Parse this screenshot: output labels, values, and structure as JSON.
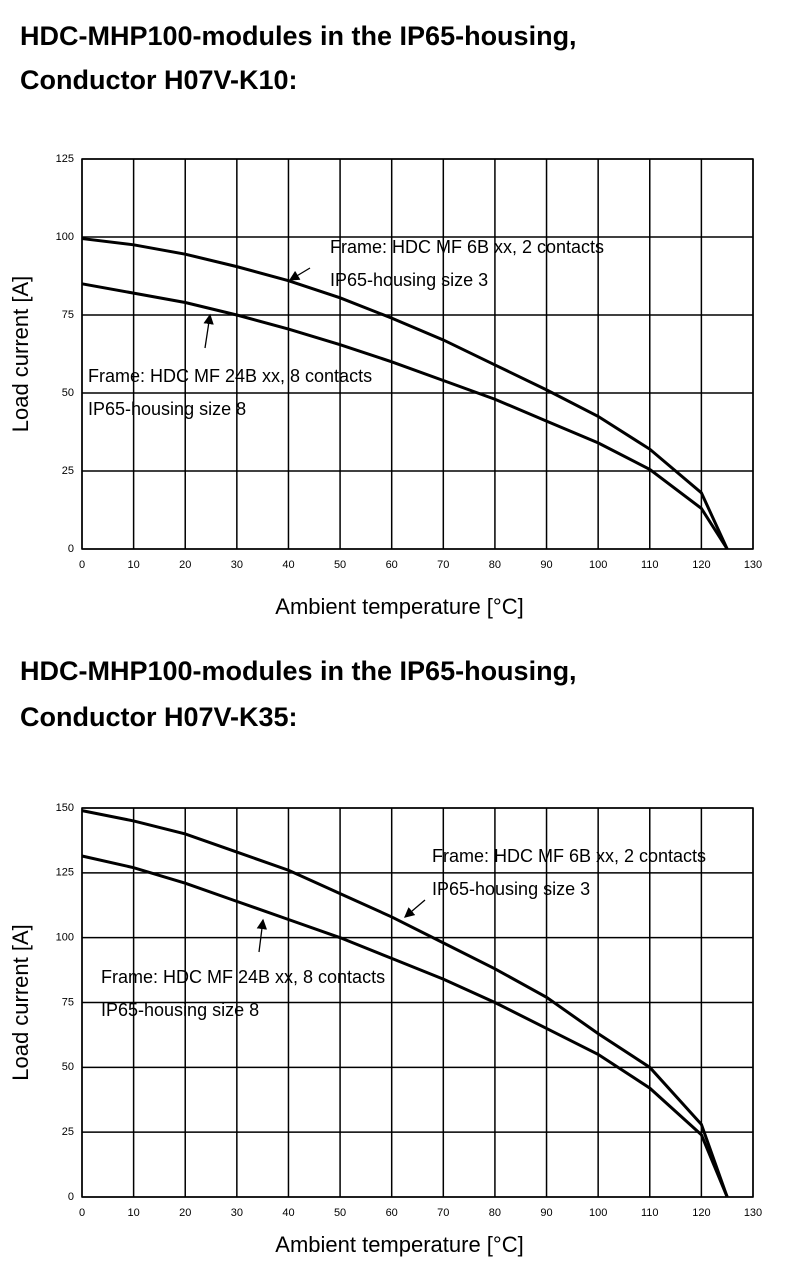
{
  "chart_data": [
    {
      "type": "line",
      "title": [
        "HDC-MHP100-modules in the IP65-housing,",
        "Conductor H07V-K10:"
      ],
      "x_label": "Ambient temperature [°C]",
      "y_label": "Load current [A]",
      "x": [
        0,
        10,
        20,
        30,
        40,
        50,
        60,
        70,
        80,
        90,
        100,
        110,
        120,
        125
      ],
      "series": [
        {
          "color": "#000000",
          "values": [
            99.5,
            97.5,
            94.5,
            90.5,
            86,
            80.5,
            74,
            67,
            59,
            51,
            42.5,
            32,
            18,
            0
          ]
        },
        {
          "color": "#000000",
          "values": [
            85,
            82,
            79,
            75,
            70.5,
            65.5,
            60,
            54,
            48,
            41,
            34,
            25.5,
            13,
            0
          ]
        }
      ],
      "annotations": [
        [
          "Frame: HDC MF 6B xx, 2 contacts",
          "IP65-housing size 3"
        ],
        [
          "Frame: HDC MF 24B xx, 8 contacts",
          "IP65-housing size 8"
        ]
      ],
      "xlim": [
        0,
        130
      ],
      "ylim": [
        0,
        125
      ],
      "xticks": [
        0,
        10,
        20,
        30,
        40,
        50,
        60,
        70,
        80,
        90,
        100,
        110,
        120,
        130
      ],
      "yticks": [
        0,
        25,
        50,
        75,
        100,
        125
      ],
      "grid": true
    },
    {
      "type": "line",
      "title": [
        "HDC-MHP100-modules in the IP65-housing,",
        "Conductor H07V-K35:"
      ],
      "x_label": "Ambient temperature [°C]",
      "y_label": "Load current [A]",
      "x": [
        0,
        10,
        20,
        30,
        40,
        50,
        60,
        70,
        80,
        90,
        100,
        110,
        120,
        125
      ],
      "series": [
        {
          "color": "#000000",
          "values": [
            149,
            145,
            140,
            133,
            126,
            117,
            108,
            98,
            88,
            77,
            63,
            50,
            28,
            0
          ]
        },
        {
          "color": "#000000",
          "values": [
            131.5,
            127,
            121,
            114,
            107,
            100,
            92,
            84,
            75,
            65,
            55,
            42,
            24,
            0
          ]
        }
      ],
      "annotations": [
        [
          "Frame: HDC MF 6B xx, 2 contacts",
          "IP65-housing size 3"
        ],
        [
          "Frame: HDC MF 24B xx, 8 contacts",
          "IP65-housing size 8"
        ]
      ],
      "xlim": [
        0,
        130
      ],
      "ylim": [
        0,
        150
      ],
      "xticks": [
        0,
        10,
        20,
        30,
        40,
        50,
        60,
        70,
        80,
        90,
        100,
        110,
        120,
        130
      ],
      "yticks": [
        0,
        25,
        50,
        75,
        100,
        125,
        150
      ],
      "grid": true
    }
  ]
}
